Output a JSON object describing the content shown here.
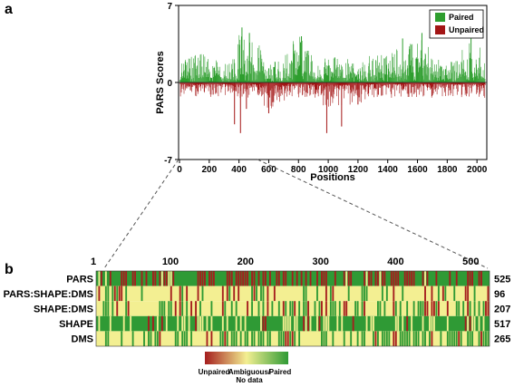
{
  "panel_a_label": "a",
  "panel_b_label": "b",
  "colors": {
    "paired": "#2e9e2e",
    "unpaired": "#a31515",
    "heat_red": "#a51e1e",
    "heat_yellow": "#f3ef92",
    "heat_green": "#2f9a35",
    "connector": "#555555"
  },
  "chart_data": [
    {
      "type": "bar",
      "xlabel": "Positions",
      "ylabel": "PARS Scores",
      "xlim": [
        0,
        2060
      ],
      "ylim": [
        -7,
        7
      ],
      "xticks": [
        0,
        200,
        400,
        600,
        800,
        1000,
        1200,
        1400,
        1600,
        1800,
        2000
      ],
      "yticks": [
        -7,
        0,
        7
      ],
      "grid": false,
      "legend_position": "top-right",
      "series": [
        {
          "name": "Paired",
          "sign": "positive"
        },
        {
          "name": "Unpaired",
          "sign": "negative"
        }
      ],
      "notable_peaks": [
        {
          "x": 420,
          "y": 5.0
        },
        {
          "x": 470,
          "y": 4.5
        },
        {
          "x": 820,
          "y": 4.2
        },
        {
          "x": 1500,
          "y": 4.0
        },
        {
          "x": 1630,
          "y": 4.5
        },
        {
          "x": 1960,
          "y": 4.0
        }
      ],
      "notable_troughs": [
        {
          "x": 370,
          "y": -3.8
        },
        {
          "x": 410,
          "y": -4.6
        },
        {
          "x": 450,
          "y": -2.4
        },
        {
          "x": 600,
          "y": -2.8
        },
        {
          "x": 990,
          "y": -4.6
        },
        {
          "x": 1090,
          "y": -4.0
        },
        {
          "x": 1200,
          "y": -2.0
        }
      ],
      "zoom_range": [
        1,
        525
      ]
    },
    {
      "type": "heatmap",
      "x_ticks": [
        "1",
        "100",
        "200",
        "300",
        "400",
        "500"
      ],
      "x_tick_values": [
        1,
        100,
        200,
        300,
        400,
        500
      ],
      "x_range": [
        1,
        525
      ],
      "rows": [
        {
          "label": "PARS",
          "count": "525",
          "base": "mixed"
        },
        {
          "label": "PARS:SHAPE:DMS",
          "count": "96",
          "base": "yellow"
        },
        {
          "label": "SHAPE:DMS",
          "count": "207",
          "base": "yellow"
        },
        {
          "label": "SHAPE",
          "count": "517",
          "base": "green"
        },
        {
          "label": "DMS",
          "count": "265",
          "base": "yellow"
        }
      ],
      "colorbar": {
        "low": "Unpaired",
        "mid_line1": "Ambiguous/",
        "mid_line2": "No data",
        "high": "Paired"
      }
    }
  ]
}
